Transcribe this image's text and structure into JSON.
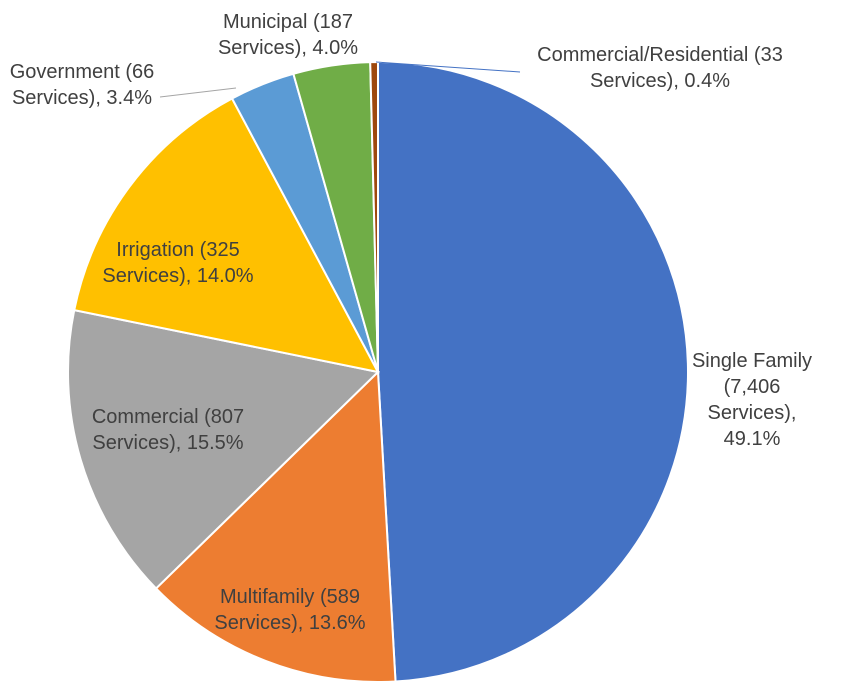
{
  "chart_data": {
    "type": "pie",
    "categories": [
      "Single Family",
      "Multifamily",
      "Commercial",
      "Irrigation",
      "Government",
      "Municipal",
      "Commercial/Residential"
    ],
    "values": [
      49.1,
      13.6,
      15.5,
      14.0,
      3.4,
      4.0,
      0.4
    ],
    "value_labels": [
      "Single Family (7,406 Services), 49.1%",
      "Multifamily (589 Services), 13.6%",
      "Commercial (807 Services), 15.5%",
      "Irrigation (325 Services), 14.0%",
      "Government (66 Services), 3.4%",
      "Municipal (187 Services), 4.0%",
      "Commercial/Residential (33 Services), 0.4%"
    ],
    "colors": [
      "#4472c4",
      "#ed7d31",
      "#a5a5a5",
      "#ffc000",
      "#5b9bd5",
      "#70ad47",
      "#9e480e"
    ]
  }
}
